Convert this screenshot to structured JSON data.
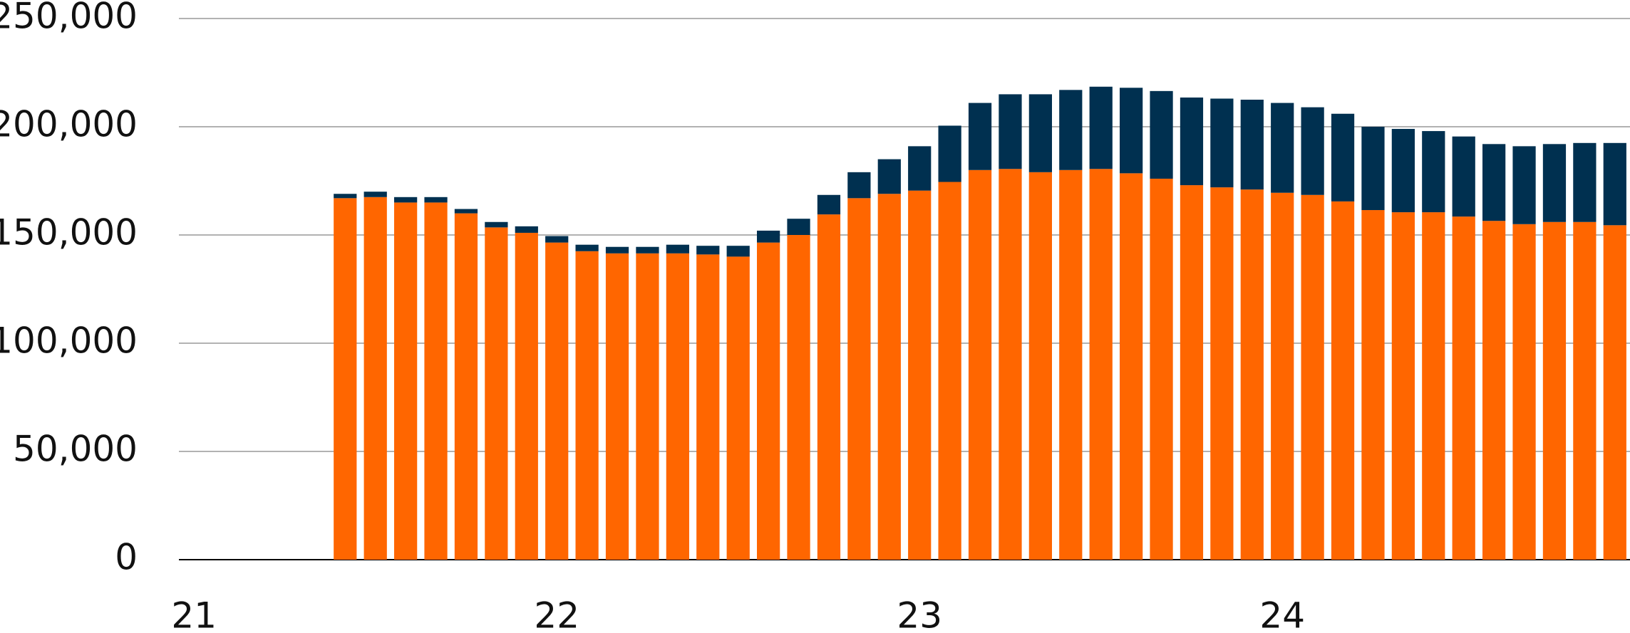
{
  "chart_data": {
    "type": "stacked_bar",
    "categories": [
      "21",
      null,
      null,
      null,
      null,
      null,
      null,
      null,
      null,
      null,
      null,
      null,
      "22",
      null,
      null,
      null,
      null,
      null,
      null,
      null,
      null,
      null,
      null,
      null,
      "23",
      null,
      null,
      null,
      null,
      null,
      null,
      null,
      null,
      null,
      null,
      null,
      "24",
      null,
      null,
      null,
      null,
      null,
      null,
      null,
      null,
      null,
      null,
      null
    ],
    "series": [
      {
        "color": "#ff6600",
        "values": [
          null,
          null,
          null,
          null,
          null,
          167000,
          167500,
          165000,
          165000,
          160000,
          153500,
          151000,
          146500,
          142500,
          141500,
          141500,
          141500,
          141000,
          140000,
          146500,
          150000,
          159500,
          167000,
          169000,
          170500,
          174500,
          180000,
          180500,
          179000,
          180000,
          180500,
          178500,
          176000,
          173000,
          172000,
          171000,
          169500,
          168500,
          165500,
          161500,
          160500,
          160500,
          158500,
          156500,
          155000,
          156000,
          156000,
          154500
        ]
      },
      {
        "color": "#003050",
        "values": [
          null,
          null,
          null,
          null,
          null,
          2000,
          2500,
          2500,
          2500,
          2000,
          2500,
          3000,
          3000,
          3000,
          3000,
          3000,
          4000,
          4000,
          5000,
          5500,
          7500,
          9000,
          12000,
          16000,
          20500,
          26000,
          31000,
          34500,
          36000,
          37000,
          38000,
          39500,
          40500,
          40500,
          41000,
          41500,
          41500,
          40500,
          40500,
          38500,
          38500,
          37500,
          37000,
          35500,
          36000,
          36000,
          36500,
          38000
        ]
      }
    ],
    "ylim": [
      0,
      250000
    ],
    "yticks": [
      0,
      {
        "value": 50000,
        "label": "50,000"
      },
      {
        "value": 100000,
        "label": "100,000"
      },
      {
        "value": 150000,
        "label": "150,000"
      },
      {
        "value": 200000,
        "label": "200,000"
      },
      {
        "value": 250000,
        "label": "250,000"
      }
    ],
    "grid": true
  }
}
